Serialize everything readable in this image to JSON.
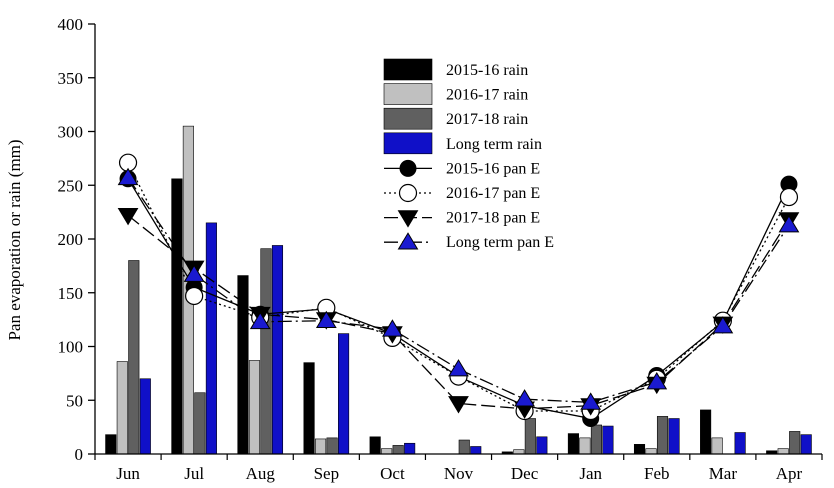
{
  "chart_data": {
    "type": "bar",
    "title": "",
    "xlabel": "",
    "ylabel": "Pan evaporation or rain (mm)",
    "ylim": [
      0,
      400
    ],
    "yticks": [
      0,
      50,
      100,
      150,
      200,
      250,
      300,
      350,
      400
    ],
    "grid": false,
    "legend_position": "top-center",
    "categories": [
      "Jun",
      "Jul",
      "Aug",
      "Sep",
      "Oct",
      "Nov",
      "Dec",
      "Jan",
      "Feb",
      "Mar",
      "Apr"
    ],
    "bar_series": [
      {
        "name": "2015-16 rain",
        "color": "#000000",
        "values": [
          18,
          256,
          166,
          85,
          16,
          0,
          2,
          19,
          9,
          41,
          3
        ]
      },
      {
        "name": "2016-17 rain",
        "color": "#c0c0c0",
        "values": [
          86,
          305,
          87,
          14,
          5,
          0,
          4,
          15,
          5,
          15,
          5
        ]
      },
      {
        "name": "2017-18 rain",
        "color": "#606060",
        "values": [
          180,
          57,
          191,
          15,
          8,
          13,
          33,
          27,
          35,
          0,
          21
        ]
      },
      {
        "name": "Long term rain",
        "color": "#1010c8",
        "values": [
          70,
          215,
          194,
          112,
          10,
          7,
          16,
          26,
          33,
          20,
          18
        ]
      }
    ],
    "line_series": [
      {
        "name": "2015-16 pan E",
        "marker": "filled-circle",
        "dash": "solid",
        "color": "#000000",
        "values": [
          256,
          155,
          130,
          135,
          112,
          72,
          45,
          33,
          73,
          123,
          251
        ]
      },
      {
        "name": "2016-17 pan E",
        "marker": "open-circle",
        "dash": "dotted",
        "color": "#000000",
        "values": [
          271,
          147,
          127,
          136,
          108,
          72,
          40,
          40,
          70,
          124,
          239
        ]
      },
      {
        "name": "2017-18 pan E",
        "marker": "filled-triangle-down",
        "dash": "long-dash",
        "color": "#000000",
        "values": [
          222,
          173,
          130,
          125,
          112,
          47,
          42,
          45,
          65,
          121,
          218
        ]
      },
      {
        "name": "Long term pan E",
        "marker": "blue-triangle-up",
        "dash": "dash-dot",
        "color": "#1010c8",
        "values": [
          257,
          167,
          123,
          124,
          116,
          79,
          51,
          48,
          67,
          119,
          213
        ]
      }
    ]
  }
}
